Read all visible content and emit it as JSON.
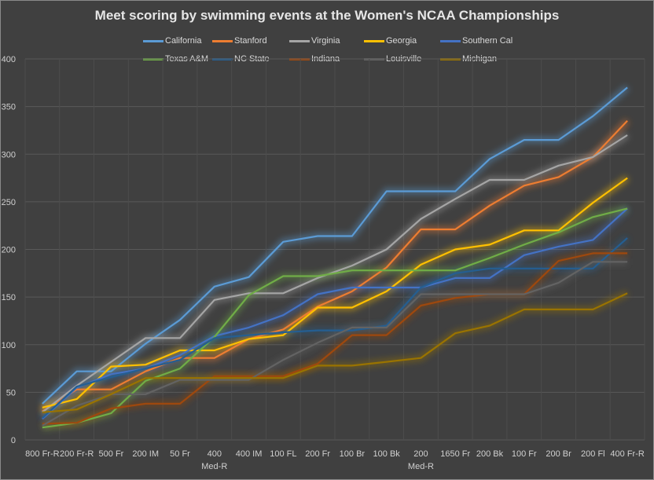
{
  "chart_data": {
    "type": "line",
    "title": "Meet scoring by swimming events at the Women's NCAA Championships",
    "xlabel": "",
    "ylabel": "",
    "ylim": [
      0,
      400
    ],
    "yticks": [
      "0",
      "50",
      "100",
      "150",
      "200",
      "250",
      "300",
      "350",
      "400"
    ],
    "grid": true,
    "legend_position": "top",
    "categories": [
      "800 Fr-R",
      "200 Fr-R",
      "500 Fr",
      "200 IM",
      "50 Fr",
      "400 Med-R",
      "400 IM",
      "100 FL",
      "200 Fr",
      "100 Br",
      "100 Bk",
      "200 Med-R",
      "1650 Fr",
      "200 Bk",
      "100 Fr",
      "200 Br",
      "200 Fl",
      "400 Fr-R"
    ],
    "category_lines": [
      [
        "800 Fr-R"
      ],
      [
        "200 Fr-R"
      ],
      [
        "500 Fr"
      ],
      [
        "200 IM"
      ],
      [
        "50 Fr"
      ],
      [
        "400",
        "Med-R"
      ],
      [
        "400 IM"
      ],
      [
        "100 FL"
      ],
      [
        "200 Fr"
      ],
      [
        "100 Br"
      ],
      [
        "100 Bk"
      ],
      [
        "200",
        "Med-R"
      ],
      [
        "1650 Fr"
      ],
      [
        "200 Bk"
      ],
      [
        "100 Fr"
      ],
      [
        "200 Br"
      ],
      [
        "200 Fl"
      ],
      [
        "400 Fr-R"
      ]
    ],
    "series": [
      {
        "name": "California",
        "color": "#5b9bd5",
        "values": [
          38,
          72,
          72,
          101,
          126,
          161,
          171,
          208,
          214,
          214,
          261,
          261,
          261,
          295,
          315,
          315,
          340,
          370
        ]
      },
      {
        "name": "Stanford",
        "color": "#ed7d31",
        "values": [
          30,
          53,
          53,
          72,
          86,
          86,
          106,
          116,
          140,
          156,
          181,
          221,
          221,
          246,
          267,
          276,
          297,
          335
        ]
      },
      {
        "name": "Virginia",
        "color": "#a5a5a5",
        "values": [
          29,
          57,
          82,
          107,
          107,
          147,
          154,
          154,
          170,
          183,
          200,
          232,
          253,
          273,
          273,
          288,
          297,
          320
        ]
      },
      {
        "name": "Georgia",
        "color": "#ffc000",
        "values": [
          34,
          43,
          77,
          79,
          94,
          94,
          106,
          110,
          139,
          139,
          156,
          184,
          200,
          205,
          220,
          220,
          249,
          275
        ]
      },
      {
        "name": "Southern Cal",
        "color": "#4472c4",
        "values": [
          22,
          55,
          69,
          75,
          89,
          109,
          118,
          131,
          153,
          160,
          160,
          160,
          170,
          170,
          194,
          203,
          210,
          243
        ]
      },
      {
        "name": "Texas A&M",
        "color": "#70ad47",
        "values": [
          13,
          18,
          28,
          62,
          75,
          108,
          152,
          172,
          172,
          178,
          178,
          178,
          178,
          191,
          205,
          218,
          234,
          243
        ]
      },
      {
        "name": "NC State",
        "color": "#255e91",
        "values": [
          23,
          56,
          66,
          75,
          84,
          107,
          110,
          113,
          115,
          115,
          120,
          160,
          175,
          180,
          180,
          180,
          180,
          212
        ]
      },
      {
        "name": "Indiana",
        "color": "#9e480e",
        "values": [
          17,
          18,
          33,
          38,
          38,
          67,
          67,
          67,
          80,
          110,
          110,
          141,
          149,
          153,
          153,
          188,
          196,
          196
        ]
      },
      {
        "name": "Louisville",
        "color": "#636363",
        "values": [
          15,
          36,
          48,
          48,
          63,
          63,
          63,
          84,
          102,
          118,
          118,
          153,
          153,
          153,
          153,
          165,
          187,
          187
        ]
      },
      {
        "name": "Michigan",
        "color": "#997300",
        "values": [
          29,
          32,
          48,
          65,
          65,
          65,
          65,
          65,
          78,
          78,
          82,
          86,
          112,
          120,
          137,
          137,
          137,
          154
        ]
      }
    ]
  }
}
